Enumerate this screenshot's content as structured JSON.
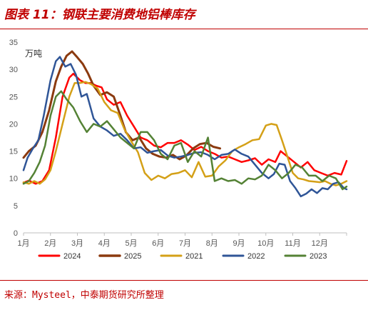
{
  "title": "图表 11：钢联主要消费地铝棒库存",
  "source": "来源：Mysteel，中泰期货研究所整理",
  "chart_data": {
    "type": "line",
    "unit": "万吨",
    "ylim": [
      0,
      35
    ],
    "yticks": [
      0,
      5,
      10,
      15,
      20,
      25,
      30,
      35
    ],
    "months": [
      "1月",
      "2月",
      "3月",
      "4月",
      "5月",
      "6月",
      "7月",
      "8月",
      "9月",
      "10月",
      "11月",
      "12月"
    ],
    "grid": false,
    "legend_position": "bottom",
    "series": [
      {
        "name": "2024",
        "color": "#ff0000",
        "width": 2.5,
        "x": [
          1,
          1.2,
          1.45,
          1.7,
          1.95,
          2.2,
          2.45,
          2.7,
          2.85,
          3.1,
          3.3,
          3.5,
          3.7,
          3.9,
          4.1,
          4.35,
          4.6,
          4.85,
          5.1,
          5.35,
          5.6,
          5.85,
          6.1,
          6.35,
          6.6,
          6.85,
          7.1,
          7.35,
          7.6,
          7.85,
          8.1,
          8.35,
          8.6,
          8.85,
          9.1,
          9.35,
          9.6,
          9.85,
          10.1,
          10.35,
          10.55,
          10.8,
          11.05,
          11.3,
          11.55,
          11.8,
          12.05,
          12.3,
          12.55,
          12.8,
          13
        ],
        "y": [
          9.2,
          9.6,
          9,
          9.5,
          11.5,
          17.5,
          25,
          28.5,
          29.2,
          28,
          27.5,
          27.5,
          27,
          26.7,
          24.5,
          23.5,
          24,
          21.5,
          19.5,
          17.5,
          17,
          16,
          15.7,
          16.5,
          16.5,
          17,
          16.2,
          15.2,
          15.8,
          15,
          14.5,
          13.8,
          14,
          13.5,
          13,
          13.3,
          13.7,
          12.5,
          13.5,
          13,
          15,
          14,
          13,
          12,
          13,
          11.5,
          11,
          10.5,
          11,
          10.7,
          13.2
        ]
      },
      {
        "name": "2025",
        "color": "#8b3a0f",
        "width": 3,
        "x": [
          1,
          1.2,
          1.45,
          1.7,
          1.95,
          2.2,
          2.4,
          2.6,
          2.8,
          3,
          3.2,
          3.4,
          3.6,
          3.85,
          4.1,
          4.35,
          4.6,
          4.8,
          5.05,
          5.3,
          5.55,
          5.8,
          6.05,
          6.3,
          6.55,
          6.8,
          7.05,
          7.3,
          7.55,
          7.8,
          8.05,
          8.3
        ],
        "y": [
          13.8,
          15,
          16,
          18.5,
          22.5,
          27.8,
          30.5,
          32.5,
          33.3,
          32.2,
          31,
          29.2,
          27,
          25.3,
          25.8,
          25,
          21.5,
          18.5,
          17,
          17.5,
          15.5,
          14.5,
          14,
          13.8,
          14.3,
          13.5,
          14.2,
          15.5,
          16.3,
          16.5,
          15.8,
          15.5
        ]
      },
      {
        "name": "2021",
        "color": "#d4a017",
        "width": 2.5,
        "x": [
          1,
          1.2,
          1.4,
          1.6,
          1.8,
          2,
          2.2,
          2.45,
          2.7,
          2.9,
          3.1,
          3.3,
          3.5,
          3.75,
          4,
          4.25,
          4.5,
          4.75,
          5,
          5.25,
          5.5,
          5.75,
          6,
          6.25,
          6.5,
          6.75,
          7,
          7.25,
          7.5,
          7.75,
          8,
          8.25,
          8.5,
          8.75,
          9,
          9.25,
          9.5,
          9.75,
          10,
          10.2,
          10.4,
          10.6,
          10.8,
          11,
          11.2,
          11.4,
          11.6,
          11.8,
          12,
          12.2,
          12.4,
          12.6,
          12.8,
          13
        ],
        "y": [
          9.3,
          9,
          9.5,
          9,
          9.8,
          11.5,
          15,
          20,
          25,
          27.5,
          27.5,
          27.7,
          27.3,
          26.5,
          24,
          22.5,
          22,
          19,
          16.8,
          14.8,
          11,
          9.7,
          10.5,
          10,
          10.8,
          11,
          11.5,
          10.2,
          13,
          10.3,
          10.5,
          12.2,
          13.3,
          15,
          15.7,
          16.3,
          17,
          17.2,
          19.7,
          20,
          19.8,
          17,
          14,
          11,
          10,
          9.8,
          9.5,
          9.4,
          9.3,
          9.5,
          9,
          8.7,
          9,
          9.5
        ]
      },
      {
        "name": "2022",
        "color": "#2f5597",
        "width": 2.5,
        "x": [
          1,
          1.15,
          1.35,
          1.55,
          1.75,
          2,
          2.2,
          2.35,
          2.55,
          2.75,
          2.95,
          3.15,
          3.35,
          3.6,
          3.85,
          4.1,
          4.35,
          4.6,
          4.85,
          5.1,
          5.35,
          5.6,
          5.85,
          6.1,
          6.35,
          6.6,
          6.85,
          7.1,
          7.35,
          7.6,
          7.85,
          8.1,
          8.35,
          8.6,
          8.85,
          9.1,
          9.35,
          9.6,
          9.85,
          10.1,
          10.3,
          10.5,
          10.7,
          10.9,
          11.1,
          11.3,
          11.5,
          11.7,
          11.9,
          12.1,
          12.3,
          12.5,
          12.7,
          12.9,
          13
        ],
        "y": [
          11.5,
          13.8,
          15.5,
          17,
          21.5,
          28,
          31.5,
          32.3,
          30.5,
          31,
          29,
          25,
          25.5,
          21,
          19.5,
          18.8,
          17.8,
          18.2,
          17,
          15.5,
          15.7,
          14.7,
          15,
          15.2,
          14.2,
          13.8,
          14,
          14.3,
          14.7,
          14.8,
          14.3,
          13.5,
          14.3,
          14.5,
          15.3,
          14.5,
          14,
          12.5,
          11,
          10,
          10.8,
          12.7,
          12.5,
          9.5,
          8.2,
          6.7,
          7.2,
          8,
          7.3,
          8.2,
          8,
          9,
          9.3,
          8.2,
          8
        ]
      },
      {
        "name": "2023",
        "color": "#548235",
        "width": 2.5,
        "x": [
          1,
          1.2,
          1.4,
          1.6,
          1.8,
          2,
          2.2,
          2.4,
          2.6,
          2.85,
          3.1,
          3.35,
          3.6,
          3.85,
          4.1,
          4.35,
          4.6,
          4.85,
          5.1,
          5.35,
          5.6,
          5.85,
          6.1,
          6.35,
          6.6,
          6.85,
          7.1,
          7.35,
          7.6,
          7.85,
          8.1,
          8.35,
          8.6,
          8.85,
          9.1,
          9.35,
          9.6,
          9.85,
          10.1,
          10.35,
          10.6,
          10.85,
          11.1,
          11.35,
          11.6,
          11.85,
          12.1,
          12.35,
          12.6,
          12.85,
          13
        ],
        "y": [
          9,
          9.5,
          11,
          13,
          16,
          21.5,
          25,
          26,
          24.5,
          23,
          20.5,
          18.5,
          20,
          19.5,
          20.5,
          19,
          17.5,
          16.5,
          15.5,
          18.5,
          18.5,
          17,
          14.5,
          13.5,
          16,
          16.5,
          13,
          15,
          14,
          17.5,
          9.5,
          10,
          9.5,
          9.7,
          9,
          10,
          9.8,
          10.5,
          12.5,
          11.5,
          10,
          11,
          12.5,
          12,
          10.5,
          10.5,
          9.5,
          10.5,
          10,
          8,
          8.5
        ]
      }
    ]
  }
}
